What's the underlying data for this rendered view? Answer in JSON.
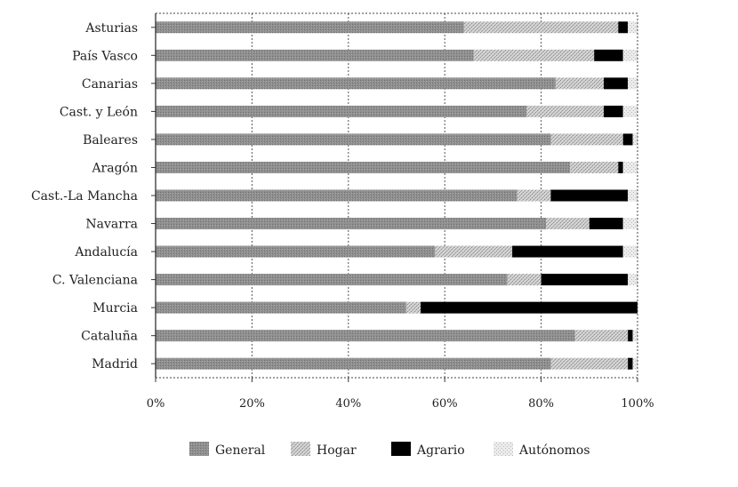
{
  "chart_data": {
    "type": "bar",
    "orientation": "horizontal",
    "stacked": true,
    "percent_stacked": true,
    "categories": [
      "Asturias",
      "País Vasco",
      "Canarias",
      "Cast. y León",
      "Baleares",
      "Aragón",
      "Cast.-La Mancha",
      "Navarra",
      "Andalucía",
      "C. Valenciana",
      "Murcia",
      "Cataluña",
      "Madrid"
    ],
    "series": [
      {
        "name": "General",
        "values": [
          64,
          66,
          83,
          77,
          82,
          86,
          75,
          81,
          58,
          73,
          52,
          87,
          82
        ]
      },
      {
        "name": "Hogar",
        "values": [
          32,
          25,
          10,
          16,
          15,
          10,
          7,
          9,
          16,
          7,
          3,
          11,
          16
        ]
      },
      {
        "name": "Agrario",
        "values": [
          2,
          6,
          5,
          4,
          2,
          1,
          16,
          7,
          23,
          18,
          45,
          1,
          1
        ]
      },
      {
        "name": "Autónomos",
        "values": [
          2,
          3,
          2,
          3,
          1,
          3,
          2,
          3,
          3,
          2,
          0,
          1,
          1
        ]
      }
    ],
    "xlim": [
      0,
      100
    ],
    "x_ticks": [
      "0%",
      "20%",
      "40%",
      "60%",
      "80%",
      "100%"
    ],
    "grid": "vertical-dashed",
    "legend_position": "bottom",
    "colors": {
      "General": "#8c8c8c",
      "Hogar": "#c4c4c4",
      "Agrario": "#000000",
      "Autónomos": "#e2e2e2"
    }
  }
}
